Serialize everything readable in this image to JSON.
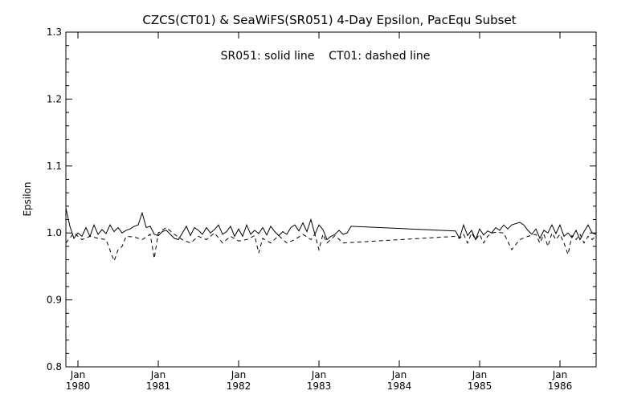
{
  "chart_data": {
    "type": "line",
    "title": "CZCS(CT01) & SeaWiFS(SR051) 4-Day Epsilon, PacEqu Subset",
    "annotation": "SR051: solid line    CT01: dashed line",
    "xlabel": "",
    "ylabel": "Epsilon",
    "ylim": [
      0.8,
      1.3
    ],
    "yticks": [
      0.8,
      0.9,
      1.0,
      1.1,
      1.2,
      1.3
    ],
    "yticklabels": [
      "0.8",
      "0.9",
      "1.0",
      "1.1",
      "1.2",
      "1.3"
    ],
    "xlim": [
      1979.85,
      1986.45
    ],
    "xticks": [
      {
        "value": 1980,
        "month": "Jan",
        "year": "1980"
      },
      {
        "value": 1981,
        "month": "Jan",
        "year": "1981"
      },
      {
        "value": 1982,
        "month": "Jan",
        "year": "1982"
      },
      {
        "value": 1983,
        "month": "Jan",
        "year": "1983"
      },
      {
        "value": 1984,
        "month": "Jan",
        "year": "1984"
      },
      {
        "value": 1985,
        "month": "Jan",
        "year": "1985"
      },
      {
        "value": 1986,
        "month": "Jan",
        "year": "1986"
      }
    ],
    "grid": false,
    "series": [
      {
        "name": "SR051",
        "style": "solid",
        "x": [
          1979.85,
          1979.9,
          1979.95,
          1980.0,
          1980.05,
          1980.1,
          1980.15,
          1980.2,
          1980.25,
          1980.3,
          1980.35,
          1980.4,
          1980.45,
          1980.5,
          1980.55,
          1980.6,
          1980.65,
          1980.7,
          1980.75,
          1980.8,
          1980.85,
          1980.9,
          1980.95,
          1981.0,
          1981.05,
          1981.1,
          1981.15,
          1981.2,
          1981.25,
          1981.3,
          1981.35,
          1981.4,
          1981.45,
          1981.5,
          1981.55,
          1981.6,
          1981.65,
          1981.7,
          1981.75,
          1981.8,
          1981.85,
          1981.9,
          1981.95,
          1982.0,
          1982.05,
          1982.1,
          1982.15,
          1982.2,
          1982.25,
          1982.3,
          1982.35,
          1982.4,
          1982.45,
          1982.5,
          1982.55,
          1982.6,
          1982.65,
          1982.7,
          1982.75,
          1982.8,
          1982.85,
          1982.9,
          1982.95,
          1983.0,
          1983.05,
          1983.1,
          1983.15,
          1983.2,
          1983.25,
          1983.3,
          1983.35,
          1983.4,
          1984.7,
          1984.75,
          1984.8,
          1984.85,
          1984.9,
          1984.95,
          1985.0,
          1985.05,
          1985.1,
          1985.15,
          1985.2,
          1985.25,
          1985.3,
          1985.35,
          1985.4,
          1985.5,
          1985.55,
          1985.6,
          1985.65,
          1985.7,
          1985.75,
          1985.8,
          1985.85,
          1985.9,
          1985.95,
          1986.0,
          1986.05,
          1986.1,
          1986.15,
          1986.2,
          1986.25,
          1986.3,
          1986.35,
          1986.4,
          1986.45
        ],
        "y": [
          1.037,
          1.01,
          0.992,
          1.0,
          0.995,
          1.008,
          0.995,
          1.012,
          0.998,
          1.005,
          0.999,
          1.012,
          1.002,
          1.008,
          1.0,
          1.004,
          1.006,
          1.01,
          1.012,
          1.03,
          1.008,
          1.01,
          0.998,
          0.996,
          1.002,
          1.004,
          0.998,
          0.992,
          0.99,
          1.0,
          1.01,
          0.996,
          1.008,
          1.004,
          0.998,
          1.008,
          1.0,
          1.005,
          1.012,
          0.998,
          1.002,
          1.01,
          0.995,
          1.006,
          0.995,
          1.012,
          0.998,
          1.004,
          0.999,
          1.008,
          0.997,
          1.01,
          1.002,
          0.996,
          1.002,
          0.998,
          1.008,
          1.012,
          1.003,
          1.015,
          1.002,
          1.02,
          0.998,
          1.012,
          1.005,
          0.99,
          0.995,
          0.998,
          1.004,
          0.998,
          1.0,
          1.01,
          1.003,
          0.992,
          1.012,
          0.996,
          1.004,
          0.99,
          1.006,
          0.997,
          1.003,
          1.0,
          1.008,
          1.004,
          1.012,
          1.006,
          1.012,
          1.016,
          1.012,
          1.004,
          0.998,
          1.006,
          0.992,
          1.004,
          1.0,
          1.012,
          0.999,
          1.012,
          0.995,
          1.0,
          0.993,
          1.004,
          0.99,
          1.002,
          1.012,
          1.0,
          0.998
        ]
      },
      {
        "name": "CT01",
        "style": "dashed",
        "x": [
          1979.85,
          1979.95,
          1980.05,
          1980.15,
          1980.25,
          1980.35,
          1980.45,
          1980.5,
          1980.55,
          1980.6,
          1980.7,
          1980.8,
          1980.9,
          1980.95,
          1981.0,
          1981.1,
          1981.2,
          1981.3,
          1981.4,
          1981.5,
          1981.6,
          1981.7,
          1981.8,
          1981.9,
          1982.0,
          1982.1,
          1982.2,
          1982.25,
          1982.3,
          1982.4,
          1982.5,
          1982.6,
          1982.7,
          1982.8,
          1982.9,
          1982.95,
          1983.0,
          1983.05,
          1983.1,
          1983.2,
          1983.3,
          1984.7,
          1984.75,
          1984.8,
          1984.85,
          1984.9,
          1984.95,
          1985.0,
          1985.05,
          1985.1,
          1985.15,
          1985.2,
          1985.3,
          1985.4,
          1985.5,
          1985.6,
          1985.7,
          1985.75,
          1985.8,
          1985.85,
          1985.9,
          1985.95,
          1986.0,
          1986.05,
          1986.1,
          1986.15,
          1986.2,
          1986.25,
          1986.3,
          1986.35,
          1986.4,
          1986.45
        ],
        "y": [
          0.985,
          1.0,
          0.99,
          0.995,
          0.992,
          0.99,
          0.958,
          0.975,
          0.98,
          0.995,
          0.994,
          0.99,
          0.998,
          0.962,
          1.0,
          1.008,
          0.998,
          0.99,
          0.985,
          0.995,
          0.99,
          1.0,
          0.985,
          0.995,
          0.988,
          0.99,
          0.996,
          0.97,
          0.992,
          0.985,
          0.996,
          0.985,
          0.99,
          0.998,
          0.99,
          0.998,
          0.975,
          0.998,
          0.985,
          0.996,
          0.985,
          0.995,
          0.992,
          0.998,
          0.985,
          1.0,
          0.99,
          0.998,
          0.985,
          0.995,
          1.0,
          1.001,
          1.0,
          0.975,
          0.99,
          0.995,
          0.998,
          0.985,
          0.998,
          0.98,
          1.0,
          0.99,
          0.998,
          0.985,
          0.968,
          0.996,
          0.99,
          0.998,
          0.985,
          0.995,
          0.99,
          0.996
        ]
      }
    ]
  }
}
